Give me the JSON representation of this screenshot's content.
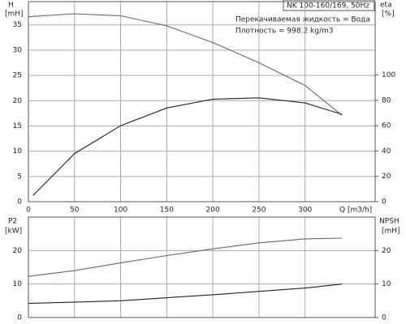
{
  "chart_data": [
    {
      "type": "line",
      "title": "NK 100-160/169, 50Hz",
      "annotations": [
        "Перекачиваемая жидкость = Вода",
        "Плотность = 998.2 kg/m3"
      ],
      "ylabel": "H",
      "yunit": "[mH]",
      "y2label": "eta",
      "y2unit": "[%]",
      "xlabel": "Q [m3/h]",
      "xlim": [
        0,
        376
      ],
      "xticks": [
        0,
        50,
        100,
        150,
        200,
        250,
        300
      ],
      "ylim": [
        0,
        39.6
      ],
      "yticks": [
        0,
        5,
        10,
        15,
        20,
        25,
        30,
        35
      ],
      "y2lim": [
        0,
        158
      ],
      "y2ticks": [
        0,
        20,
        40,
        60,
        80,
        100
      ],
      "grid": true,
      "series": [
        {
          "color": "#5a6690",
          "x": [
            0,
            50,
            100,
            150,
            200,
            250,
            300,
            340
          ],
          "values": [
            36.6,
            37.2,
            36.8,
            34.8,
            31.5,
            27.5,
            23,
            17.1
          ]
        },
        {
          "color": "#222222",
          "axis": "y2",
          "x": [
            5,
            50,
            100,
            150,
            200,
            250,
            300,
            340
          ],
          "values": [
            5,
            38,
            60,
            74,
            81,
            82,
            78,
            69
          ]
        }
      ]
    },
    {
      "type": "line",
      "ylabel": "P2",
      "yunit": "[kW]",
      "y2label": "NPSH",
      "y2unit": "[mH]",
      "xlim": [
        0,
        376
      ],
      "ylim": [
        0,
        30
      ],
      "yticks": [
        0,
        10,
        20
      ],
      "y2lim": [
        0,
        30
      ],
      "y2ticks": [
        0,
        10,
        20
      ],
      "grid": true,
      "series": [
        {
          "color": "#5a6690",
          "x": [
            0,
            50,
            100,
            150,
            200,
            250,
            300,
            340
          ],
          "values": [
            12.3,
            14,
            16.3,
            18.5,
            20.5,
            22.3,
            23.5,
            23.7
          ]
        },
        {
          "color": "#222222",
          "axis": "y2",
          "x": [
            0,
            100,
            200,
            300,
            340
          ],
          "values": [
            4.2,
            5,
            6.8,
            8.8,
            10
          ]
        }
      ]
    }
  ]
}
